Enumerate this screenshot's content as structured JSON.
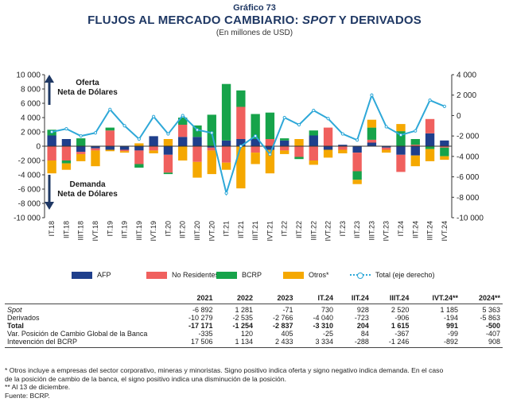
{
  "header": {
    "figure_label": "Gráfico 73",
    "title_pre": "FLUJOS AL MERCADO CAMBIARIO: ",
    "title_spot": "SPOT",
    "title_post": " Y DERIVADOS",
    "subtitle": "(En millones de USD)"
  },
  "chart_data": {
    "type": "bar",
    "stacked": true,
    "categories": [
      "I.18",
      "II.18",
      "III.18",
      "IV.18",
      "I.19",
      "II.19",
      "III.19",
      "IV.19",
      "I.20",
      "II.20",
      "III.20",
      "IV.20",
      "I.21",
      "II.21",
      "III.21",
      "IV.21",
      "I.22",
      "II.22",
      "III.22",
      "IV.22",
      "I.23",
      "II.23",
      "III.23",
      "IV.23",
      "I.24",
      "II.24",
      "III.24",
      "IV.24"
    ],
    "category_labels": [
      "IT.18",
      "IIT.18",
      "IIIT.18",
      "IVT.18",
      "IT.19",
      "IIT.19",
      "IIIT.19",
      "IVT.19",
      "IT.20",
      "IIT.20",
      "IIIT.20",
      "IVT.20",
      "IT.21",
      "IIT.21",
      "IIIT.21",
      "IVT.21",
      "IT.22",
      "IIT.22",
      "IIIT.22",
      "IVT.22",
      "IT.23",
      "IIT.23",
      "IIIT.23",
      "IVT.23",
      "IT.24",
      "IIT.24",
      "IIIT.24",
      "IVT.24"
    ],
    "series": [
      {
        "name": "AFP",
        "color": "#1f3f8c",
        "values": [
          1500,
          1000,
          -800,
          -300,
          -500,
          -500,
          -600,
          1400,
          -1200,
          1300,
          1300,
          -200,
          800,
          1000,
          1000,
          -500,
          800,
          0,
          1500,
          -500,
          200,
          -900,
          500,
          -200,
          -1200,
          -1300,
          1800,
          800
        ]
      },
      {
        "name": "No Residentes",
        "color": "#f0605e",
        "values": [
          -2000,
          -2000,
          -300,
          -300,
          2200,
          -200,
          -1900,
          -600,
          -2500,
          1700,
          -2200,
          -400,
          -2300,
          4500,
          -900,
          1000,
          -600,
          -1500,
          -2000,
          2600,
          -500,
          -2600,
          400,
          -300,
          -2400,
          200,
          2000,
          -200
        ]
      },
      {
        "name": "BCRP",
        "color": "#16a34a",
        "values": [
          800,
          -400,
          1100,
          0,
          400,
          0,
          -500,
          0,
          -200,
          1000,
          1600,
          4400,
          7900,
          2300,
          3500,
          3700,
          300,
          -300,
          700,
          0,
          0,
          -1200,
          1700,
          0,
          2100,
          800,
          -400,
          -1200
        ]
      },
      {
        "name": "Otros*",
        "color": "#f5a800",
        "values": [
          -1800,
          -900,
          -1000,
          -2200,
          -200,
          -200,
          400,
          -400,
          1000,
          -2000,
          -2200,
          -3300,
          -1000,
          -5900,
          -1600,
          -3300,
          -500,
          1000,
          -600,
          -1100,
          -500,
          -600,
          1100,
          -400,
          1000,
          -1500,
          -1700,
          -500
        ]
      }
    ],
    "line": {
      "name": "Total (eje derecho)",
      "color": "#2ea8d8",
      "axis": "right",
      "values": [
        -1600,
        -1300,
        -2000,
        -1700,
        600,
        -1000,
        -2300,
        -100,
        -1800,
        0,
        -1400,
        -1700,
        -7600,
        -3000,
        -2000,
        -3800,
        -200,
        -900,
        500,
        -300,
        -1800,
        -2400,
        2000,
        -1100,
        -1900,
        -1500,
        1500,
        900
      ]
    },
    "y_left": {
      "min": -10000,
      "max": 10000,
      "step": 2000,
      "ticks": [
        "10 000",
        "8 000",
        "6 000",
        "4 000",
        "2 000",
        "0",
        "-2 000",
        "-4 000",
        "-6 000",
        "-8 000",
        "-10 000"
      ]
    },
    "y_right": {
      "min": -10000,
      "max": 4000,
      "step": 2000,
      "ticks": [
        "4 000",
        "2 000",
        "0",
        "-2 000",
        "-4 000",
        "-6 000",
        "-8 000",
        "-10 000"
      ]
    },
    "annotation_top": [
      "Oferta",
      "Neta de Dólares"
    ],
    "annotation_bottom": [
      "Demanda",
      "Neta de Dólares"
    ],
    "grid": false,
    "legend_position": "bottom"
  },
  "legend": {
    "afp": "AFP",
    "no_res": "No Residentes",
    "bcrp": "BCRP",
    "otros": "Otros*",
    "total": "Total (eje derecho)"
  },
  "table": {
    "headers": [
      "",
      "2021",
      "2022",
      "2023",
      "IT.24",
      "IIT.24",
      "IIIT.24",
      "IVT.24**",
      "2024**"
    ],
    "rows": [
      {
        "label": "Spot",
        "values": [
          "-6 892",
          "1 281",
          "-71",
          "730",
          "928",
          "2 520",
          "1 185",
          "5 363"
        ]
      },
      {
        "label": "Derivados",
        "values": [
          "-10 279",
          "-2 535",
          "-2 766",
          "-4 040",
          "-723",
          "-906",
          "-194",
          "-5 863"
        ]
      },
      {
        "label": "Total",
        "values": [
          "-17 171",
          "-1 254",
          "-2 837",
          "-3 310",
          "204",
          "1 615",
          "991",
          "-500"
        ]
      },
      {
        "label": "Var. Posición de Cambio Global de la Banca",
        "values": [
          "-335",
          "120",
          "405",
          "-25",
          "84",
          "-367",
          "-99",
          "-407"
        ]
      },
      {
        "label": "Intevención del BCRP",
        "values": [
          "17 506",
          "1 134",
          "2 433",
          "3 334",
          "-288",
          "-1 246",
          "-892",
          "908"
        ]
      }
    ]
  },
  "notes": [
    "* Otros incluye a empresas del sector corporativo, mineras y minoristas. Signo positivo indica oferta y signo negativo indica demanda. En el caso",
    "de la posición de cambio de la banca, el signo positivo indica una disminución de la posición.",
    "** Al 13 de diciembre.",
    "Fuente: BCRP."
  ]
}
